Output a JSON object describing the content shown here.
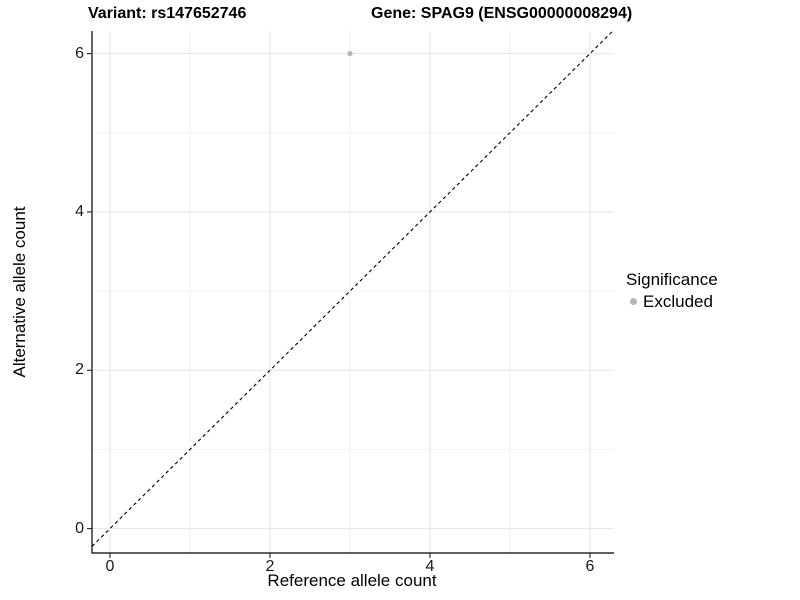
{
  "chart_data": {
    "type": "scatter",
    "title_left": "Variant: rs147652746",
    "title_right": "Gene: SPAG9 (ENSG00000008294)",
    "xlabel": "Reference allele count",
    "ylabel": "Alternative allele count",
    "xlim": [
      -0.3,
      6.3
    ],
    "ylim": [
      -0.3,
      6.3
    ],
    "xticks": [
      0,
      2,
      4,
      6
    ],
    "yticks": [
      0,
      2,
      4,
      6
    ],
    "minor_xticks": [
      1,
      3,
      5
    ],
    "minor_yticks": [
      1,
      3,
      5
    ],
    "grid": "major and minor, light gray on white panel",
    "series": [
      {
        "name": "Excluded",
        "color": "#b5b5b5",
        "points": [
          {
            "x": 3,
            "y": 6
          }
        ]
      }
    ],
    "identity_line": {
      "equation": "y = x",
      "style": "dashed",
      "color": "#000000"
    },
    "legend": {
      "position": "right",
      "title": "Significance",
      "items": [
        {
          "label": "Excluded",
          "color": "#b5b5b5"
        }
      ]
    },
    "colors": {
      "background": "#ffffff",
      "grid_major": "#e4e4e4",
      "grid_minor": "#f0f0f0",
      "axis_line": "#000000",
      "tick_mark": "#333333",
      "tick_text": "#1a1a1a",
      "point": "#b5b5b5"
    }
  }
}
